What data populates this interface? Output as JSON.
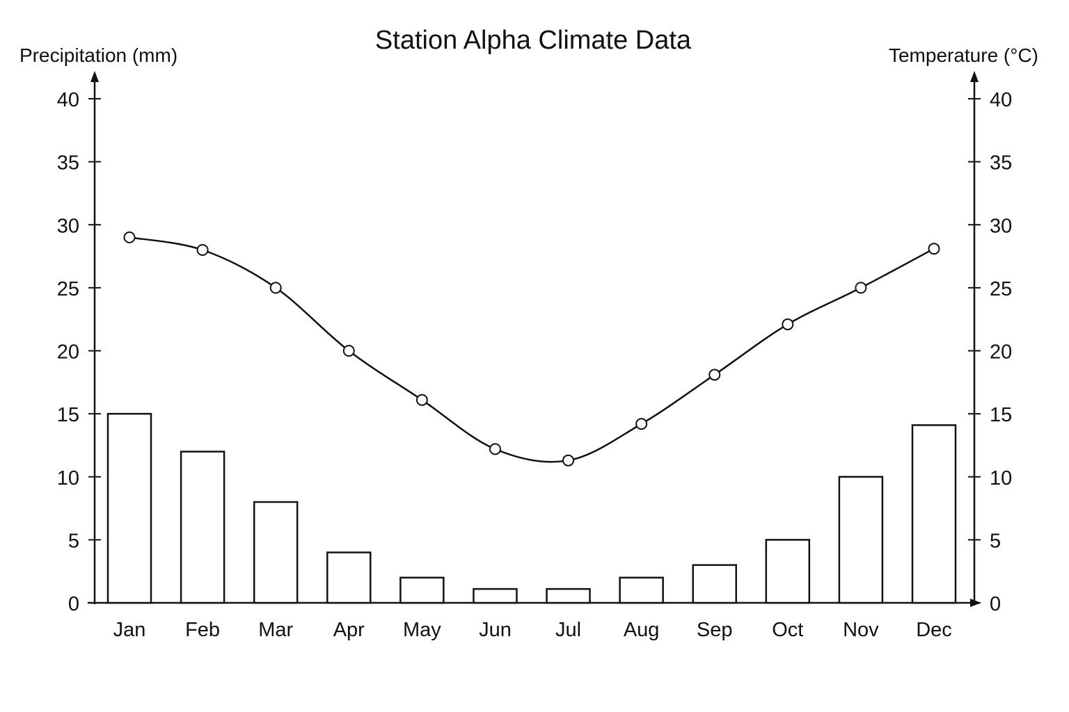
{
  "chart_data": {
    "type": "bar",
    "title": "Station Alpha Climate Data",
    "categories": [
      "Jan",
      "Feb",
      "Mar",
      "Apr",
      "May",
      "Jun",
      "Jul",
      "Aug",
      "Sep",
      "Oct",
      "Nov",
      "Dec"
    ],
    "y_left": {
      "label": "Precipitation (mm)",
      "ticks": [
        0,
        5,
        10,
        15,
        20,
        25,
        30,
        35,
        40
      ],
      "ylim": [
        0,
        40
      ]
    },
    "y_right": {
      "label": "Temperature (°C)",
      "ticks": [
        0,
        5,
        10,
        15,
        20,
        25,
        30,
        35,
        40
      ],
      "ylim": [
        0,
        40
      ]
    },
    "series": [
      {
        "type": "bar",
        "axis": "left",
        "values": [
          15,
          12,
          8,
          4,
          2,
          1.1,
          1.1,
          2,
          3,
          5,
          10,
          14.1
        ],
        "fill": "#ffffff",
        "stroke": "#111111"
      },
      {
        "type": "line",
        "axis": "right",
        "values": [
          29,
          28,
          25,
          20,
          16.1,
          12.2,
          11.3,
          14.2,
          18.1,
          22.1,
          25,
          28.1
        ],
        "marker": "open-circle",
        "stroke": "#111111"
      }
    ],
    "grid": false,
    "legend": "none"
  }
}
